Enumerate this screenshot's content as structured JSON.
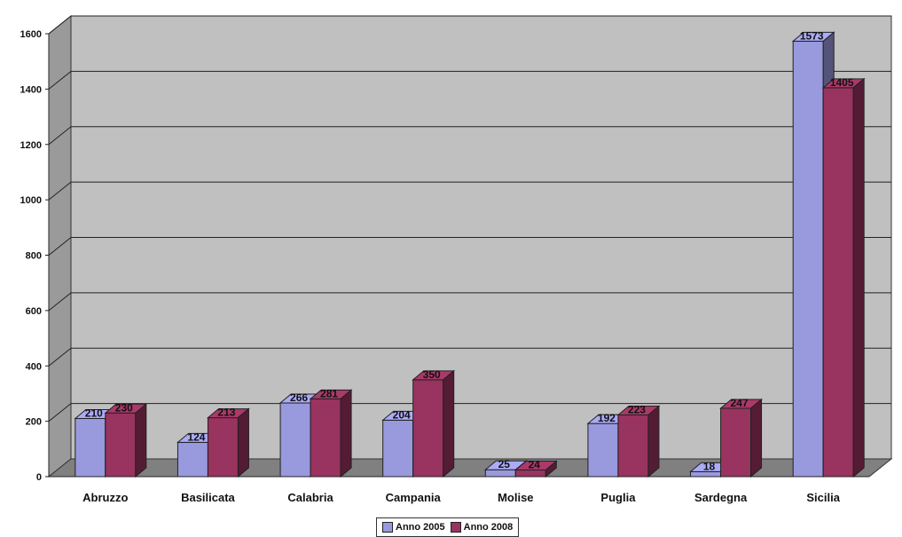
{
  "chart_data": {
    "type": "bar",
    "categories": [
      "Abruzzo",
      "Basilicata",
      "Calabria",
      "Campania",
      "Molise",
      "Puglia",
      "Sardegna",
      "Sicilia"
    ],
    "series": [
      {
        "name": "Anno 2005",
        "color": "#9999dd",
        "values": [
          210,
          124,
          266,
          204,
          25,
          192,
          18,
          1573
        ],
        "data_labels": [
          "210",
          "124",
          "266",
          "204",
          "25",
          "192",
          "18",
          "1573"
        ]
      },
      {
        "name": "Anno 2008",
        "color": "#99335f",
        "values": [
          230,
          213,
          281,
          350,
          24,
          223,
          247,
          1405
        ],
        "data_labels": [
          "230",
          "213",
          "281",
          "350",
          "24",
          "223",
          "247",
          "1405"
        ]
      }
    ],
    "yticks": [
      "0",
      "200",
      "400",
      "600",
      "800",
      "1000",
      "1200",
      "1400",
      "1600"
    ],
    "ylim": [
      0,
      1600
    ],
    "grid": true,
    "legend_position": "bottom",
    "style": "3d-clustered-column",
    "wall_color": "#c0c0c0",
    "floor_color": "#808080"
  }
}
